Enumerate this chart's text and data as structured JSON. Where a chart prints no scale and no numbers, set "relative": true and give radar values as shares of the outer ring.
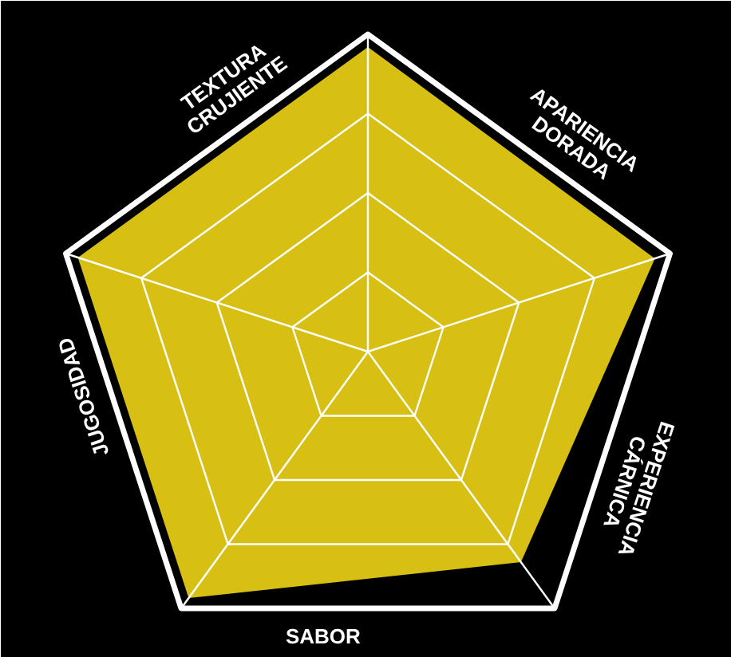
{
  "chart_data": {
    "type": "radar",
    "relative": true,
    "grid": true,
    "categories": [
      "TEXTURA CRUJIENTE",
      "APARIENCIA DORADA",
      "EXPERIENCIA CÁRNICA",
      "SABOR",
      "JUGOSIDAD"
    ],
    "series": [
      {
        "color": "#d8bf14",
        "values": [
          0.96,
          0.95,
          0.82,
          0.96,
          0.96
        ]
      }
    ]
  }
}
